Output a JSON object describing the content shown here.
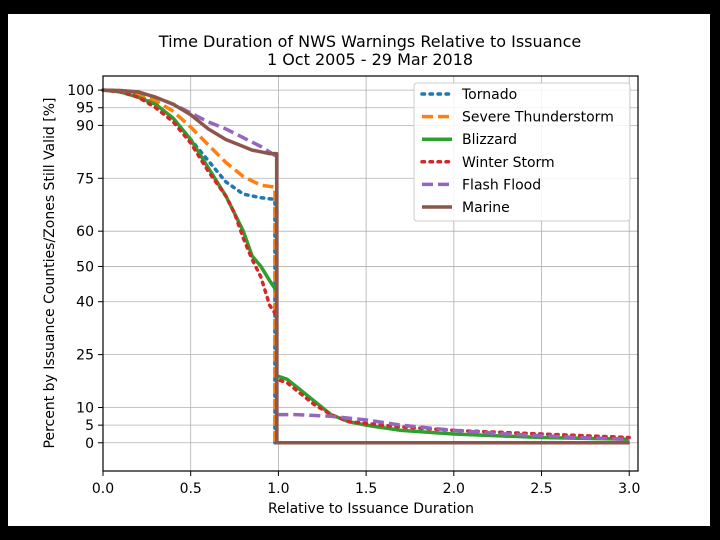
{
  "chart_data": {
    "type": "line",
    "title": "Time Duration of NWS Warnings Relative to Issuance",
    "subtitle": "1 Oct 2005 - 29 Mar 2018",
    "xlabel": "Relative to Issuance Duration",
    "ylabel": "Percent by Issuance Counties/Zones Still Valid [%]",
    "xlim": [
      0.0,
      3.05
    ],
    "ylim": [
      -8,
      104
    ],
    "xticks": [
      {
        "value": 0.0,
        "label": "0.0"
      },
      {
        "value": 0.5,
        "label": "0.5"
      },
      {
        "value": 1.0,
        "label": "1.0"
      },
      {
        "value": 1.5,
        "label": "1.5"
      },
      {
        "value": 2.0,
        "label": "2.0"
      },
      {
        "value": 2.5,
        "label": "2.5"
      },
      {
        "value": 3.0,
        "label": "3.0"
      }
    ],
    "yticks": [
      {
        "value": 0,
        "label": "0"
      },
      {
        "value": 5,
        "label": "5"
      },
      {
        "value": 10,
        "label": "10"
      },
      {
        "value": 25,
        "label": "25"
      },
      {
        "value": 40,
        "label": "40"
      },
      {
        "value": 50,
        "label": "50"
      },
      {
        "value": 60,
        "label": "60"
      },
      {
        "value": 75,
        "label": "75"
      },
      {
        "value": 90,
        "label": "90"
      },
      {
        "value": 95,
        "label": "95"
      },
      {
        "value": 100,
        "label": "100"
      }
    ],
    "grid": true,
    "legend_position": "top-right",
    "series": [
      {
        "name": "Tornado",
        "color": "#1f77b4",
        "style": "dotted",
        "x": [
          0,
          0.1,
          0.2,
          0.3,
          0.4,
          0.5,
          0.6,
          0.7,
          0.8,
          0.9,
          0.98,
          0.98,
          1.0,
          3.0
        ],
        "y": [
          100,
          99.8,
          98.5,
          96,
          92,
          86,
          80,
          74,
          70.5,
          69.5,
          69,
          0,
          0,
          0
        ]
      },
      {
        "name": "Severe Thunderstorm",
        "color": "#ff7f0e",
        "style": "dashed",
        "x": [
          0,
          0.1,
          0.2,
          0.3,
          0.4,
          0.5,
          0.6,
          0.7,
          0.8,
          0.9,
          0.98,
          0.98,
          1.0,
          3.0
        ],
        "y": [
          100,
          99.8,
          99,
          97,
          94,
          89.5,
          84.5,
          79.5,
          75.5,
          73,
          72.5,
          0,
          0,
          0
        ]
      },
      {
        "name": "Blizzard",
        "color": "#2ca02c",
        "style": "solid",
        "x": [
          0,
          0.1,
          0.2,
          0.3,
          0.4,
          0.5,
          0.6,
          0.7,
          0.75,
          0.8,
          0.85,
          0.9,
          0.95,
          0.99,
          0.99,
          1.05,
          1.1,
          1.2,
          1.3,
          1.4,
          1.5,
          1.7,
          2.0,
          2.5,
          3.0
        ],
        "y": [
          100,
          99.5,
          98,
          96,
          92,
          86,
          78,
          70,
          65,
          60,
          53,
          50,
          46,
          43,
          19,
          18,
          16,
          12,
          8,
          6,
          5,
          3.5,
          2.5,
          1.5,
          1
        ]
      },
      {
        "name": "Winter Storm",
        "color": "#d62728",
        "style": "dotted",
        "x": [
          0,
          0.1,
          0.2,
          0.3,
          0.4,
          0.5,
          0.6,
          0.7,
          0.75,
          0.8,
          0.85,
          0.9,
          0.95,
          0.99,
          0.99,
          1.05,
          1.1,
          1.2,
          1.3,
          1.4,
          1.5,
          1.7,
          2.0,
          2.5,
          3.0
        ],
        "y": [
          100,
          99.5,
          98,
          95,
          91,
          85,
          77,
          70,
          65,
          58,
          52,
          47,
          39,
          36,
          18,
          17,
          15,
          11,
          8,
          6,
          5.5,
          4.5,
          3.5,
          2.5,
          1.5
        ]
      },
      {
        "name": "Flash Flood",
        "color": "#9467bd",
        "style": "dashed",
        "x": [
          0,
          0.1,
          0.2,
          0.3,
          0.4,
          0.5,
          0.6,
          0.7,
          0.8,
          0.9,
          0.98,
          0.99,
          0.99,
          1.1,
          1.3,
          1.5,
          1.7,
          2.0,
          2.3,
          2.5,
          2.7,
          3.0
        ],
        "y": [
          100,
          99.8,
          99.5,
          98,
          96,
          93.5,
          91,
          89,
          86.5,
          84,
          81.5,
          81.5,
          8,
          8,
          7.5,
          6.5,
          5,
          3.5,
          2.5,
          2,
          1.5,
          1
        ]
      },
      {
        "name": "Marine",
        "color": "#8c564b",
        "style": "solid",
        "x": [
          0,
          0.1,
          0.2,
          0.3,
          0.4,
          0.5,
          0.6,
          0.7,
          0.8,
          0.85,
          0.9,
          0.95,
          0.99,
          0.99,
          1.0,
          3.0
        ],
        "y": [
          100,
          99.9,
          99.5,
          98,
          96,
          93,
          89,
          86,
          84,
          83,
          82.5,
          82,
          82,
          0,
          0,
          0
        ]
      }
    ]
  }
}
